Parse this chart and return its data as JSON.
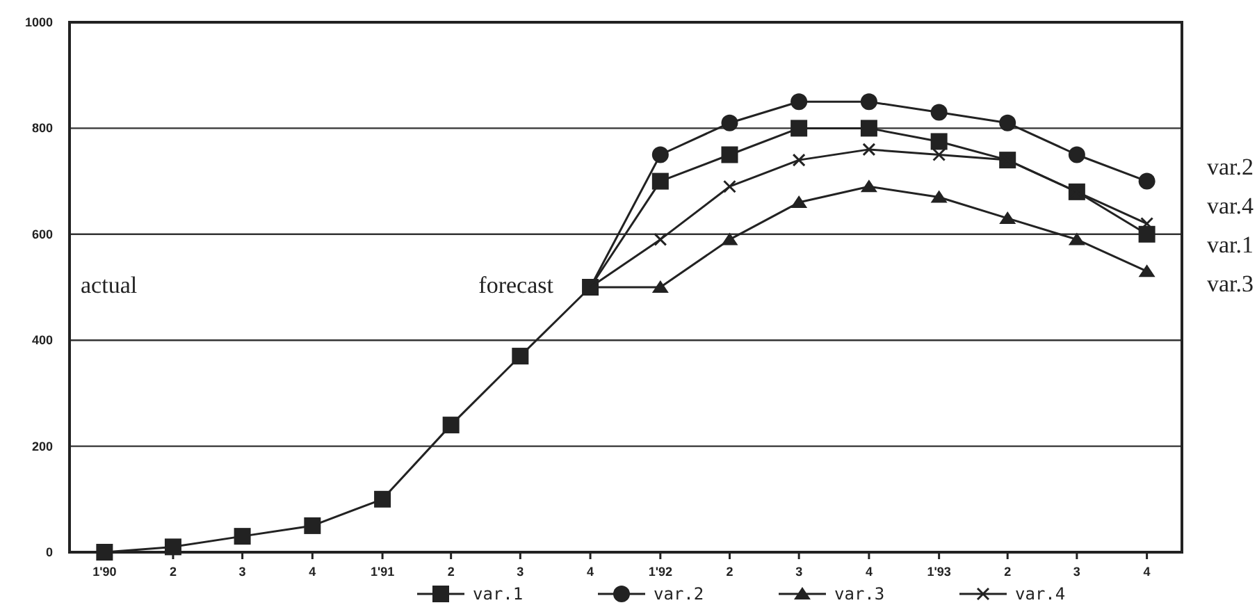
{
  "chart_data": {
    "type": "line",
    "x": [
      "1990-01",
      "1990-04",
      "1990-07",
      "1990-10",
      "1991-01",
      "1991-04",
      "1991-07",
      "1991-10",
      "1992-01",
      "1992-04",
      "1992-07",
      "1992-10",
      "1993-01",
      "1993-04",
      "1993-07",
      "1993-10"
    ],
    "xlim": [
      "1989-11-16",
      "1993-11-16"
    ],
    "xticks": [
      {
        "value": "1990-01",
        "label": "1'90"
      },
      {
        "value": "1990-04",
        "label": "2"
      },
      {
        "value": "1990-07",
        "label": "3"
      },
      {
        "value": "1990-10",
        "label": "4"
      },
      {
        "value": "1991-01",
        "label": "1'91"
      },
      {
        "value": "1991-04",
        "label": "2"
      },
      {
        "value": "1991-07",
        "label": "3"
      },
      {
        "value": "1991-10",
        "label": "4"
      },
      {
        "value": "1992-01",
        "label": "1'92"
      },
      {
        "value": "1992-04",
        "label": "2"
      },
      {
        "value": "1992-07",
        "label": "3"
      },
      {
        "value": "1992-10",
        "label": "4"
      },
      {
        "value": "1993-01",
        "label": "1'93"
      },
      {
        "value": "1993-04",
        "label": "2"
      },
      {
        "value": "1993-07",
        "label": "3"
      },
      {
        "value": "1993-10",
        "label": "4"
      }
    ],
    "series": [
      {
        "name": "var.1",
        "color": "#222222",
        "marker": "square",
        "values": [
          0,
          10,
          30,
          50,
          100,
          240,
          370,
          500,
          700,
          750,
          800,
          800,
          775,
          740,
          680,
          600
        ]
      },
      {
        "name": "var.2",
        "color": "#222222",
        "marker": "circle",
        "values": [
          null,
          null,
          null,
          null,
          null,
          null,
          null,
          500,
          750,
          810,
          850,
          850,
          830,
          810,
          750,
          700
        ]
      },
      {
        "name": "var.3",
        "color": "#222222",
        "marker": "triangle",
        "values": [
          null,
          null,
          null,
          null,
          null,
          null,
          null,
          500,
          500,
          590,
          660,
          690,
          670,
          630,
          590,
          530
        ]
      },
      {
        "name": "var.4",
        "color": "#222222",
        "marker": "cross",
        "values": [
          null,
          null,
          null,
          null,
          null,
          null,
          null,
          500,
          590,
          690,
          740,
          760,
          750,
          740,
          680,
          620
        ]
      }
    ],
    "ylim": [
      0,
      1000
    ],
    "yticks": [
      0,
      200,
      400,
      600,
      800,
      1000
    ],
    "grid": "y",
    "legend": "bottom",
    "annotations": [
      "actual",
      "forecast"
    ]
  }
}
